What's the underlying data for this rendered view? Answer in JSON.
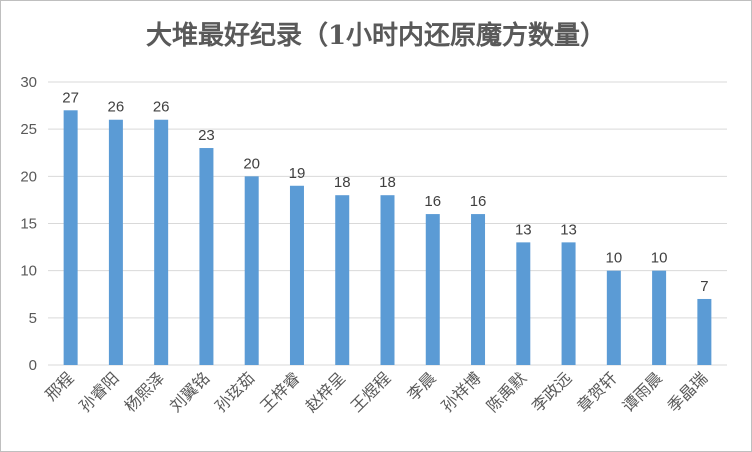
{
  "chart_data": {
    "type": "bar",
    "title": "大堆最好纪录（1小时内还原魔方数量）",
    "categories": [
      "邢程",
      "孙睿阳",
      "杨熙泽",
      "刘翼铭",
      "孙玹茹",
      "王梓睿",
      "赵梓呈",
      "王煜程",
      "李晨",
      "孙祥博",
      "陈禹默",
      "李政远",
      "章贺轩",
      "谭雨晨",
      "季晶瑞"
    ],
    "values": [
      27,
      26,
      26,
      23,
      20,
      19,
      18,
      18,
      16,
      16,
      13,
      13,
      10,
      10,
      7
    ],
    "ylim": [
      0,
      30
    ],
    "yticks": [
      0,
      5,
      10,
      15,
      20,
      25,
      30
    ],
    "xlabel": "",
    "ylabel": "",
    "grid": true,
    "bar_color": "#5b9bd5",
    "grid_color": "#d9d9d9",
    "data_labels": true
  }
}
